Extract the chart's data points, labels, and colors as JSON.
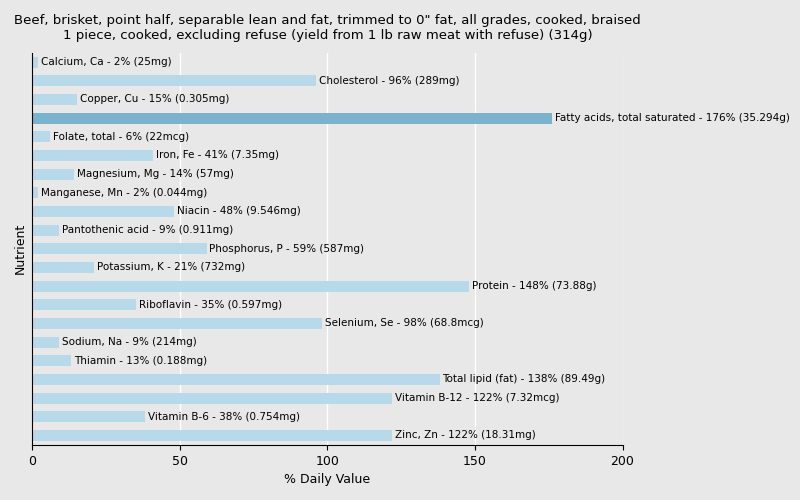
{
  "title": "Beef, brisket, point half, separable lean and fat, trimmed to 0\" fat, all grades, cooked, braised\n1 piece, cooked, excluding refuse (yield from 1 lb raw meat with refuse) (314g)",
  "xlabel": "% Daily Value",
  "ylabel": "Nutrient",
  "nutrients": [
    "Calcium, Ca - 2% (25mg)",
    "Cholesterol - 96% (289mg)",
    "Copper, Cu - 15% (0.305mg)",
    "Fatty acids, total saturated - 176% (35.294g)",
    "Folate, total - 6% (22mcg)",
    "Iron, Fe - 41% (7.35mg)",
    "Magnesium, Mg - 14% (57mg)",
    "Manganese, Mn - 2% (0.044mg)",
    "Niacin - 48% (9.546mg)",
    "Pantothenic acid - 9% (0.911mg)",
    "Phosphorus, P - 59% (587mg)",
    "Potassium, K - 21% (732mg)",
    "Protein - 148% (73.88g)",
    "Riboflavin - 35% (0.597mg)",
    "Selenium, Se - 98% (68.8mcg)",
    "Sodium, Na - 9% (214mg)",
    "Thiamin - 13% (0.188mg)",
    "Total lipid (fat) - 138% (89.49g)",
    "Vitamin B-12 - 122% (7.32mcg)",
    "Vitamin B-6 - 38% (0.754mg)",
    "Zinc, Zn - 122% (18.31mg)"
  ],
  "values": [
    2,
    96,
    15,
    176,
    6,
    41,
    14,
    2,
    48,
    9,
    59,
    21,
    148,
    35,
    98,
    9,
    13,
    138,
    122,
    38,
    122
  ],
  "bar_color": "#b8d9ea",
  "highlight_color": "#7ab3ce",
  "highlight_index": 3,
  "xlim": [
    0,
    200
  ],
  "xticks": [
    0,
    50,
    100,
    150,
    200
  ],
  "background_color": "#e8e8e8",
  "title_fontsize": 9.5,
  "axis_label_fontsize": 9,
  "tick_fontsize": 9,
  "bar_label_fontsize": 7.5
}
